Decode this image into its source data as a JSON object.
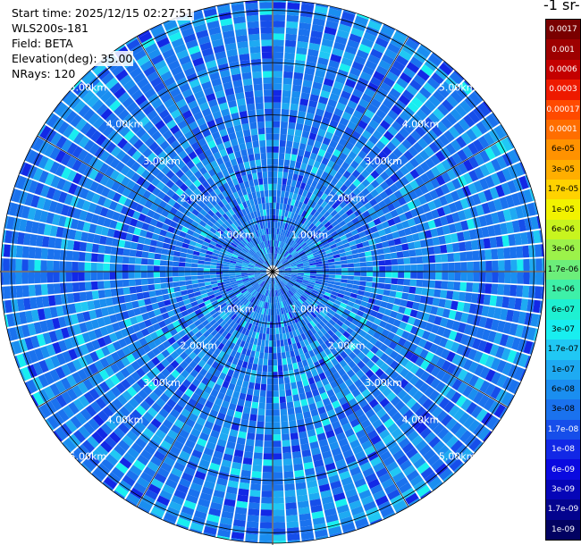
{
  "info": {
    "start_time": "Start time: 2025/12/15 02:27:51",
    "instrument": "WLS200s-181",
    "field": "Field: BETA",
    "elevation": "Elevation(deg): 35.00",
    "nrays": "NRays: 120"
  },
  "units_label": "-1 sr-",
  "chart_data": {
    "type": "heatmap",
    "projection": "polar (PPI)",
    "nrays": 120,
    "range_rings_km": [
      1,
      2,
      3,
      4,
      5
    ],
    "ring_labels": [
      "1.00km",
      "2.00km",
      "3.00km",
      "4.00km",
      "5.00km"
    ],
    "dominant_value_band": [
      "3e-08",
      "1e-06"
    ],
    "colorbar": [
      {
        "label": "0.0017",
        "color": "#7a0000"
      },
      {
        "label": "0.001",
        "color": "#9e0000"
      },
      {
        "label": "0.0006",
        "color": "#c40000"
      },
      {
        "label": "0.0003",
        "color": "#ee1a00"
      },
      {
        "label": "0.00017",
        "color": "#ff4a00"
      },
      {
        "label": "0.0001",
        "color": "#ff6e00"
      },
      {
        "label": "6e-05",
        "color": "#ff9200"
      },
      {
        "label": "3e-05",
        "color": "#ffae00"
      },
      {
        "label": "1.7e-05",
        "color": "#ffd200"
      },
      {
        "label": "1e-05",
        "color": "#f2f200"
      },
      {
        "label": "6e-06",
        "color": "#c8f41e"
      },
      {
        "label": "3e-06",
        "color": "#9cf24a"
      },
      {
        "label": "1.7e-06",
        "color": "#6cee7a"
      },
      {
        "label": "1e-06",
        "color": "#3ef0a8"
      },
      {
        "label": "6e-07",
        "color": "#1ef0d2"
      },
      {
        "label": "3e-07",
        "color": "#18eef0"
      },
      {
        "label": "1.7e-07",
        "color": "#20c8f4"
      },
      {
        "label": "1e-07",
        "color": "#1eaaf2"
      },
      {
        "label": "6e-08",
        "color": "#1a8ef0"
      },
      {
        "label": "3e-08",
        "color": "#1a72ee"
      },
      {
        "label": "1.7e-08",
        "color": "#164eea"
      },
      {
        "label": "1e-08",
        "color": "#1228e6"
      },
      {
        "label": "6e-09",
        "color": "#0a0ae0"
      },
      {
        "label": "3e-09",
        "color": "#0606b8"
      },
      {
        "label": "1.7e-09",
        "color": "#04048e"
      },
      {
        "label": "1e-09",
        "color": "#020262"
      }
    ]
  }
}
